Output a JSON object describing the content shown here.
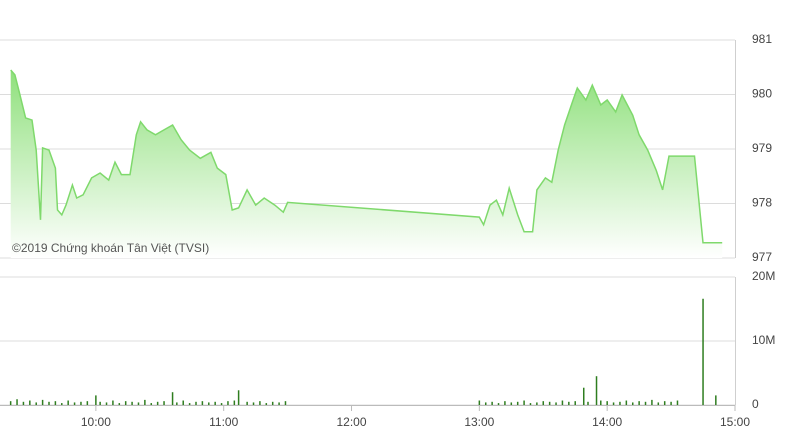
{
  "chart_data": [
    {
      "type": "area",
      "watermark": "©2019 Chứng khoán Tân Việt (TVSI)",
      "color": "#7fd96c",
      "grid": true,
      "xlim": [
        "09:15",
        "15:00"
      ],
      "ylim": [
        977,
        981
      ],
      "yticks": [
        977,
        978,
        979,
        980,
        981
      ],
      "x": [
        "09:20",
        "09:22",
        "09:24",
        "09:27",
        "09:30",
        "09:32",
        "09:34",
        "09:35",
        "09:38",
        "09:41",
        "09:42",
        "09:44",
        "09:46",
        "09:49",
        "09:51",
        "09:54",
        "09:58",
        "10:02",
        "10:06",
        "10:09",
        "10:12",
        "10:16",
        "10:19",
        "10:21",
        "10:24",
        "10:28",
        "10:32",
        "10:36",
        "10:40",
        "10:44",
        "10:49",
        "10:54",
        "10:57",
        "11:01",
        "11:04",
        "11:07",
        "11:11",
        "11:15",
        "11:19",
        "11:24",
        "11:28",
        "11:30",
        "13:00",
        "13:02",
        "13:05",
        "13:08",
        "13:11",
        "13:14",
        "13:18",
        "13:21",
        "13:25",
        "13:27",
        "13:31",
        "13:34",
        "13:37",
        "13:40",
        "13:44",
        "13:46",
        "13:50",
        "13:53",
        "13:57",
        "14:00",
        "14:04",
        "14:07",
        "14:12",
        "14:15",
        "14:19",
        "14:23",
        "14:26",
        "14:29",
        "14:41",
        "14:45",
        "14:54"
      ],
      "values": [
        980.45,
        980.36,
        980.05,
        979.57,
        979.53,
        978.98,
        977.7,
        979.02,
        978.98,
        978.65,
        977.88,
        977.79,
        977.97,
        978.34,
        978.1,
        978.16,
        978.47,
        978.56,
        978.43,
        978.76,
        978.53,
        978.53,
        979.26,
        979.5,
        979.35,
        979.26,
        979.35,
        979.44,
        979.17,
        978.98,
        978.83,
        978.94,
        978.65,
        978.53,
        977.88,
        977.92,
        978.25,
        977.97,
        978.1,
        977.97,
        977.84,
        978.02,
        977.75,
        977.61,
        977.97,
        978.06,
        977.79,
        978.28,
        977.79,
        977.48,
        977.48,
        978.25,
        978.47,
        978.39,
        978.98,
        979.44,
        979.9,
        980.12,
        979.9,
        980.17,
        979.81,
        979.9,
        979.68,
        979.99,
        979.62,
        979.26,
        978.98,
        978.61,
        978.25,
        978.87,
        978.87,
        977.28,
        977.28
      ]
    },
    {
      "type": "bar",
      "color": "#2e7d1f",
      "grid": true,
      "xlim": [
        "09:15",
        "15:00"
      ],
      "xticks": [
        "10:00",
        "11:00",
        "12:00",
        "13:00",
        "14:00",
        "15:00"
      ],
      "ylim": [
        0,
        20000000
      ],
      "yticks": [
        0,
        {
          "value": 10000000,
          "label": "10M"
        },
        {
          "value": 20000000,
          "label": "20M"
        }
      ],
      "x": [
        "09:20",
        "09:23",
        "09:26",
        "09:29",
        "09:32",
        "09:35",
        "09:38",
        "09:41",
        "09:44",
        "09:47",
        "09:50",
        "09:53",
        "09:56",
        "10:00",
        "10:02",
        "10:05",
        "10:08",
        "10:11",
        "10:14",
        "10:17",
        "10:20",
        "10:23",
        "10:26",
        "10:29",
        "10:32",
        "10:36",
        "10:38",
        "10:41",
        "10:44",
        "10:47",
        "10:50",
        "10:53",
        "10:56",
        "10:59",
        "11:02",
        "11:05",
        "11:07",
        "11:11",
        "11:14",
        "11:17",
        "11:20",
        "11:23",
        "11:26",
        "11:29",
        "13:00",
        "13:03",
        "13:06",
        "13:09",
        "13:12",
        "13:15",
        "13:18",
        "13:21",
        "13:24",
        "13:27",
        "13:30",
        "13:33",
        "13:36",
        "13:39",
        "13:42",
        "13:45",
        "13:49",
        "13:51",
        "13:55",
        "13:57",
        "14:00",
        "14:03",
        "14:06",
        "14:09",
        "14:12",
        "14:15",
        "14:18",
        "14:21",
        "14:24",
        "14:27",
        "14:30",
        "14:33",
        "14:45",
        "14:51"
      ],
      "values": [
        600000,
        900000,
        500000,
        700000,
        400000,
        800000,
        500000,
        600000,
        300000,
        700000,
        400000,
        500000,
        600000,
        1500000,
        500000,
        400000,
        700000,
        300000,
        600000,
        500000,
        400000,
        800000,
        300000,
        500000,
        600000,
        2000000,
        400000,
        700000,
        300000,
        500000,
        600000,
        400000,
        500000,
        300000,
        600000,
        700000,
        2300000,
        500000,
        400000,
        600000,
        300000,
        500000,
        400000,
        600000,
        700000,
        400000,
        500000,
        300000,
        600000,
        400000,
        500000,
        700000,
        300000,
        400000,
        600000,
        500000,
        400000,
        700000,
        500000,
        600000,
        2700000,
        500000,
        4500000,
        700000,
        600000,
        400000,
        500000,
        700000,
        400000,
        600000,
        500000,
        800000,
        400000,
        600000,
        500000,
        700000,
        16600000,
        1500000
      ]
    }
  ]
}
